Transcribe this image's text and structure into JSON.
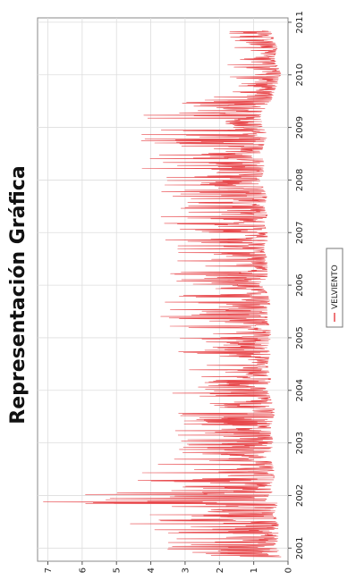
{
  "chart_data": {
    "type": "line",
    "orientation": "rotated-90-ccw",
    "title": "Representación Gráfica",
    "xlabel": "",
    "ylabel": "",
    "x_ticks": [
      "2001",
      "2002",
      "2003",
      "2004",
      "2005",
      "2006",
      "2007",
      "2008",
      "2009",
      "2010",
      "2011"
    ],
    "y_ticks": [
      "0",
      "1",
      "2",
      "3",
      "4",
      "5",
      "6",
      "7"
    ],
    "ylim": [
      0,
      7.3
    ],
    "xlim": [
      "2000-10",
      "2011-02"
    ],
    "grid": true,
    "legend_position": "bottom",
    "colors": {
      "series": "#e8484c",
      "grid": "#dddddd",
      "frame": "#888888"
    },
    "series": [
      {
        "name": "VELVIENTO",
        "x": [
          "2000-11",
          "2001-01",
          "2001-03",
          "2001-05",
          "2001-07",
          "2001-09",
          "2001-11",
          "2002-01",
          "2002-03",
          "2002-05",
          "2002-07",
          "2002-09",
          "2002-11",
          "2003-01",
          "2003-03",
          "2003-05",
          "2003-07",
          "2003-09",
          "2003-11",
          "2004-01",
          "2004-03",
          "2004-05",
          "2004-07",
          "2004-09",
          "2004-11",
          "2005-01",
          "2005-03",
          "2005-05",
          "2005-07",
          "2005-09",
          "2005-11",
          "2006-01",
          "2006-03",
          "2006-05",
          "2006-07",
          "2006-09",
          "2006-11",
          "2007-01",
          "2007-03",
          "2007-05",
          "2007-07",
          "2007-09",
          "2007-11",
          "2008-01",
          "2008-03",
          "2008-05",
          "2008-07",
          "2008-09",
          "2008-11",
          "2009-01",
          "2009-03",
          "2009-05",
          "2009-07",
          "2009-09",
          "2009-11",
          "2010-01",
          "2010-03",
          "2010-05",
          "2010-07",
          "2010-09",
          "2010-11"
        ],
        "peak": [
          4.3,
          4.1,
          3.9,
          4.4,
          4.7,
          5.3,
          7.6,
          6.2,
          5.2,
          4.6,
          4.1,
          3.6,
          3.3,
          3.9,
          3.5,
          3.7,
          3.4,
          3.6,
          3.2,
          3.5,
          3.1,
          3.4,
          2.9,
          3.3,
          3.1,
          3.3,
          3.5,
          3.7,
          4.0,
          3.6,
          3.8,
          3.6,
          3.9,
          3.4,
          4.2,
          3.3,
          3.9,
          3.6,
          4.0,
          3.8,
          3.5,
          3.9,
          4.1,
          4.4,
          4.8,
          4.5,
          4.1,
          4.3,
          4.4,
          4.7,
          4.3,
          4.4,
          3.5,
          1.9,
          1.7,
          1.9,
          1.8,
          1.5,
          1.6,
          1.7,
          1.8
        ],
        "low": [
          0.2,
          0.3,
          0.3,
          0.2,
          0.3,
          0.4,
          0.3,
          0.4,
          0.5,
          0.4,
          0.4,
          0.5,
          0.5,
          0.4,
          0.5,
          0.5,
          0.4,
          0.4,
          0.5,
          0.6,
          0.5,
          0.5,
          0.6,
          0.5,
          0.6,
          0.5,
          0.5,
          0.6,
          0.6,
          0.5,
          0.6,
          0.7,
          0.6,
          0.6,
          0.6,
          0.7,
          0.6,
          0.6,
          0.7,
          0.6,
          0.7,
          0.6,
          0.7,
          0.8,
          0.7,
          0.7,
          0.8,
          0.7,
          0.6,
          0.7,
          0.8,
          0.7,
          0.5,
          0.4,
          0.3,
          0.2,
          0.3,
          0.4,
          0.3,
          0.4,
          0.5
        ]
      }
    ]
  }
}
